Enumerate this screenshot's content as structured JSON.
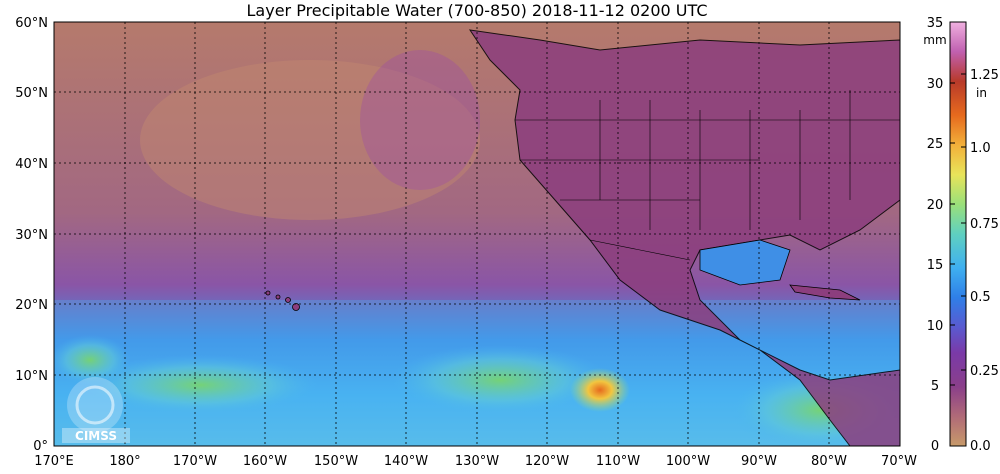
{
  "title": "Layer Precipitable Water (700-850)  2018-11-12 0200 UTC",
  "map": {
    "lat_labels": [
      "60°N",
      "50°N",
      "40°N",
      "30°N",
      "20°N",
      "10°N",
      "0°"
    ],
    "lon_labels": [
      "170°E",
      "180°",
      "170°W",
      "160°W",
      "150°W",
      "140°W",
      "130°W",
      "120°W",
      "110°W",
      "100°W",
      "90°W",
      "80°W",
      "70°W"
    ],
    "logo_text": "CIMSS"
  },
  "colorbar": {
    "mm_unit": "mm",
    "mm_ticks": [
      "35",
      "30",
      "25",
      "20",
      "15",
      "10",
      "5",
      "0"
    ],
    "in_unit": "in",
    "in_ticks": [
      "1.25",
      "1.0",
      "0.75",
      "0.5",
      "0.25",
      "0.0"
    ],
    "colors": [
      "#c79a6a",
      "#b06a78",
      "#8a3f8a",
      "#9c3aa0",
      "#5a5ad0",
      "#2f7fe8",
      "#3fb0f0",
      "#7ad6b0",
      "#c9e86a",
      "#f2c640",
      "#ee8a2a",
      "#d94a1a",
      "#b0402a",
      "#c86ab8",
      "#eaa0d6"
    ]
  }
}
